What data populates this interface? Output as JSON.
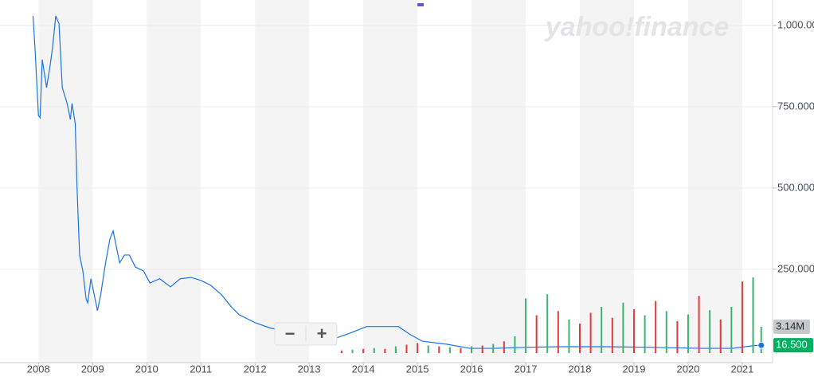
{
  "chart_data": {
    "type": "line",
    "watermark": "yahoo!finance",
    "zoom_out_label": "−",
    "zoom_in_label": "+",
    "x": [
      2007.9,
      2007.94,
      2008.0,
      2008.03,
      2008.07,
      2008.15,
      2008.21,
      2008.26,
      2008.32,
      2008.38,
      2008.44,
      2008.53,
      2008.59,
      2008.62,
      2008.68,
      2008.71,
      2008.76,
      2008.82,
      2008.88,
      2008.91,
      2008.97,
      2009.03,
      2009.09,
      2009.15,
      2009.24,
      2009.32,
      2009.38,
      2009.44,
      2009.5,
      2009.59,
      2009.68,
      2009.79,
      2009.94,
      2010.06,
      2010.24,
      2010.44,
      2010.62,
      2010.82,
      2011.0,
      2011.18,
      2011.38,
      2011.56,
      2011.71,
      2012.0,
      2012.29,
      2012.59,
      2012.88,
      2013.18,
      2013.47,
      2013.76,
      2014.06,
      2014.35,
      2014.65,
      2014.87,
      2015.09,
      2015.53,
      2015.97,
      2016.41,
      2017.0,
      2017.59,
      2018.47,
      2019.35,
      2020.24,
      2020.82,
      2021.19,
      2021.35
    ],
    "series": [
      {
        "color": "#1a73e8",
        "values": [
          1029,
          920,
          723,
          716,
          895,
          809,
          870,
          931,
          1029,
          1005,
          809,
          760,
          711,
          760,
          698,
          515,
          294,
          245,
          159,
          147,
          221,
          172,
          123,
          172,
          270,
          343,
          368,
          319,
          270,
          294,
          294,
          257,
          245,
          208,
          221,
          196,
          221,
          225,
          216,
          201,
          172,
          135,
          110,
          86,
          69,
          61,
          49,
          37,
          37,
          54,
          74,
          74,
          74,
          49,
          29,
          20,
          7,
          7,
          10,
          12,
          12,
          10,
          7,
          7,
          15,
          16.5
        ]
      },
      {
        "type": "bar",
        "axis": "y2",
        "x": [
          2013.6,
          2013.8,
          2014.0,
          2014.2,
          2014.4,
          2014.6,
          2014.8,
          2015.0,
          2015.2,
          2015.4,
          2015.6,
          2015.8,
          2016.0,
          2016.2,
          2016.4,
          2016.6,
          2016.8,
          2017.0,
          2017.2,
          2017.4,
          2017.6,
          2017.8,
          2018.0,
          2018.2,
          2018.4,
          2018.6,
          2018.8,
          2019.0,
          2019.2,
          2019.4,
          2019.6,
          2019.8,
          2020.0,
          2020.2,
          2020.4,
          2020.6,
          2020.8,
          2021.0,
          2021.2,
          2021.35
        ],
        "values": [
          0.3,
          0.4,
          0.5,
          0.6,
          0.5,
          0.8,
          1.0,
          1.2,
          0.9,
          0.8,
          0.7,
          0.6,
          0.8,
          0.9,
          1.1,
          1.4,
          2.0,
          6.5,
          4.5,
          7.0,
          5.0,
          4.0,
          3.5,
          4.8,
          5.5,
          4.2,
          6.0,
          5.2,
          4.5,
          6.2,
          5.0,
          3.8,
          4.6,
          6.8,
          5.1,
          4.0,
          5.5,
          8.5,
          9.0,
          3.14
        ],
        "colors": [
          "#e5393b",
          "#3cb371",
          "#e5393b",
          "#3cb371",
          "#e5393b",
          "#3cb371",
          "#e5393b",
          "#e5393b",
          "#3cb371",
          "#e5393b",
          "#3cb371",
          "#e5393b",
          "#3cb371",
          "#e5393b",
          "#3cb371",
          "#e5393b",
          "#3cb371",
          "#3cb371",
          "#e5393b",
          "#3cb371",
          "#e5393b",
          "#3cb371",
          "#e5393b",
          "#e5393b",
          "#3cb371",
          "#e5393b",
          "#3cb371",
          "#e5393b",
          "#3cb371",
          "#e5393b",
          "#3cb371",
          "#e5393b",
          "#3cb371",
          "#e5393b",
          "#3cb371",
          "#e5393b",
          "#3cb371",
          "#e5393b",
          "#3cb371",
          "#3cb371"
        ]
      }
    ],
    "price_tag": {
      "value": 16.5,
      "label": "16.500"
    },
    "volume_tag": {
      "value": 3.14,
      "label": "3.14M"
    },
    "xlim": [
      2007.29,
      2021.56
    ],
    "xticks": [
      2008,
      2009,
      2010,
      2011,
      2012,
      2013,
      2014,
      2015,
      2016,
      2017,
      2018,
      2019,
      2020,
      2021
    ],
    "ylim": [
      -37,
      1078
    ],
    "yticks": [
      {
        "value": 250,
        "label": "250.000"
      },
      {
        "value": 500,
        "label": "500.000"
      },
      {
        "value": 750,
        "label": "750.000"
      },
      {
        "value": 1000,
        "label": "1,000.000"
      }
    ],
    "y2lim": [
      0,
      42
    ],
    "grid": true
  }
}
